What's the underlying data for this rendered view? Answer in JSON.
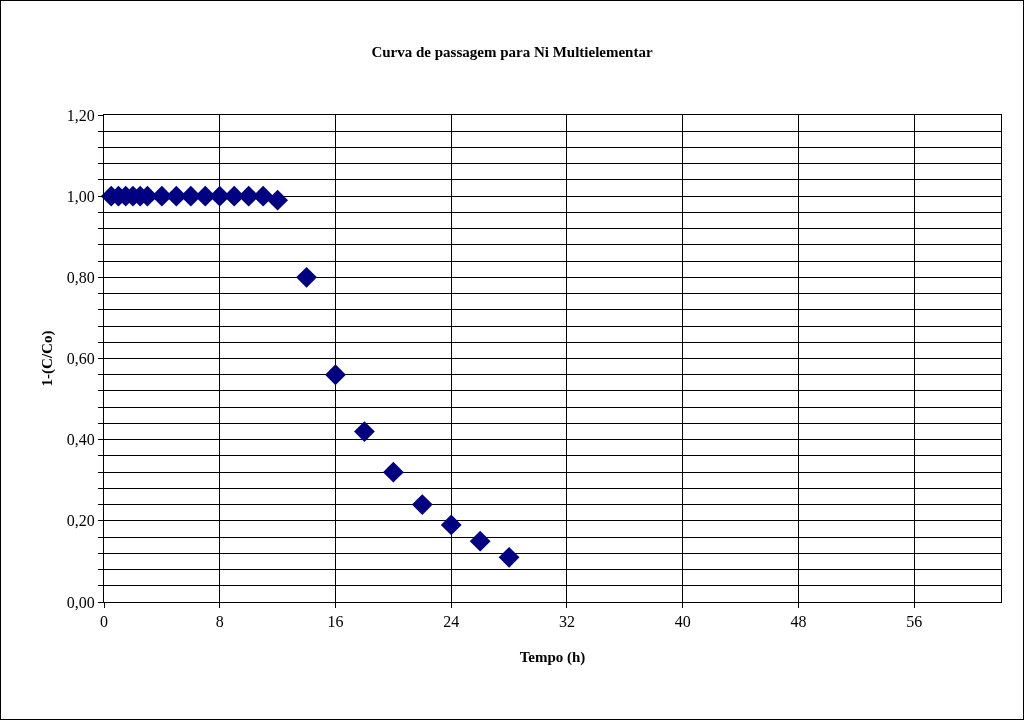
{
  "chart_data": {
    "type": "scatter",
    "title": "Curva de passagem para Ni Multielementar",
    "xlabel": "Tempo (h)",
    "ylabel": "1-(C/Co)",
    "x": [
      0.5,
      1,
      1.5,
      2,
      2.5,
      3,
      4,
      5,
      6,
      7,
      8,
      9,
      10,
      11,
      12,
      14,
      16,
      18,
      20,
      22,
      24,
      26,
      28
    ],
    "series": [
      {
        "color": "#000080",
        "values": [
          1,
          1,
          1,
          1,
          1,
          1,
          1,
          1,
          1,
          1,
          1,
          1,
          1,
          1,
          0.99,
          0.8,
          0.56,
          0.42,
          0.32,
          0.24,
          0.19,
          0.15,
          0.11
        ]
      }
    ],
    "xlim": [
      0,
      62
    ],
    "xticks": [
      0,
      8,
      16,
      24,
      32,
      40,
      48,
      56
    ],
    "ylim": [
      0,
      1.2
    ],
    "yticks": [
      "0,00",
      {
        "value": 0.04,
        "label": null
      },
      {
        "value": 0.08,
        "label": null
      },
      {
        "value": 0.12,
        "label": null
      },
      {
        "value": 0.16,
        "label": null
      },
      {
        "value": 0.2,
        "label": "0,20"
      },
      {
        "value": 0.24,
        "label": null
      },
      {
        "value": 0.28,
        "label": null
      },
      {
        "value": 0.32,
        "label": null
      },
      {
        "value": 0.36,
        "label": null
      },
      {
        "value": 0.4,
        "label": "0,40"
      },
      {
        "value": 0.44,
        "label": null
      },
      {
        "value": 0.48,
        "label": null
      },
      {
        "value": 0.52,
        "label": null
      },
      {
        "value": 0.56,
        "label": null
      },
      {
        "value": 0.6,
        "label": "0,60"
      },
      {
        "value": 0.64,
        "label": null
      },
      {
        "value": 0.68,
        "label": null
      },
      {
        "value": 0.72,
        "label": null
      },
      {
        "value": 0.76,
        "label": null
      },
      {
        "value": 0.8,
        "label": "0,80"
      },
      {
        "value": 0.84,
        "label": null
      },
      {
        "value": 0.88,
        "label": null
      },
      {
        "value": 0.92,
        "label": null
      },
      {
        "value": 0.96,
        "label": null
      },
      {
        "value": 1,
        "label": "1,00"
      },
      {
        "value": 1.04,
        "label": null
      },
      {
        "value": 1.08,
        "label": null
      },
      {
        "value": 1.12,
        "label": null
      },
      {
        "value": 1.16,
        "label": null
      },
      {
        "value": 1.2,
        "label": "1,20"
      }
    ],
    "grid": true,
    "legend": false,
    "marker": "diamond"
  }
}
